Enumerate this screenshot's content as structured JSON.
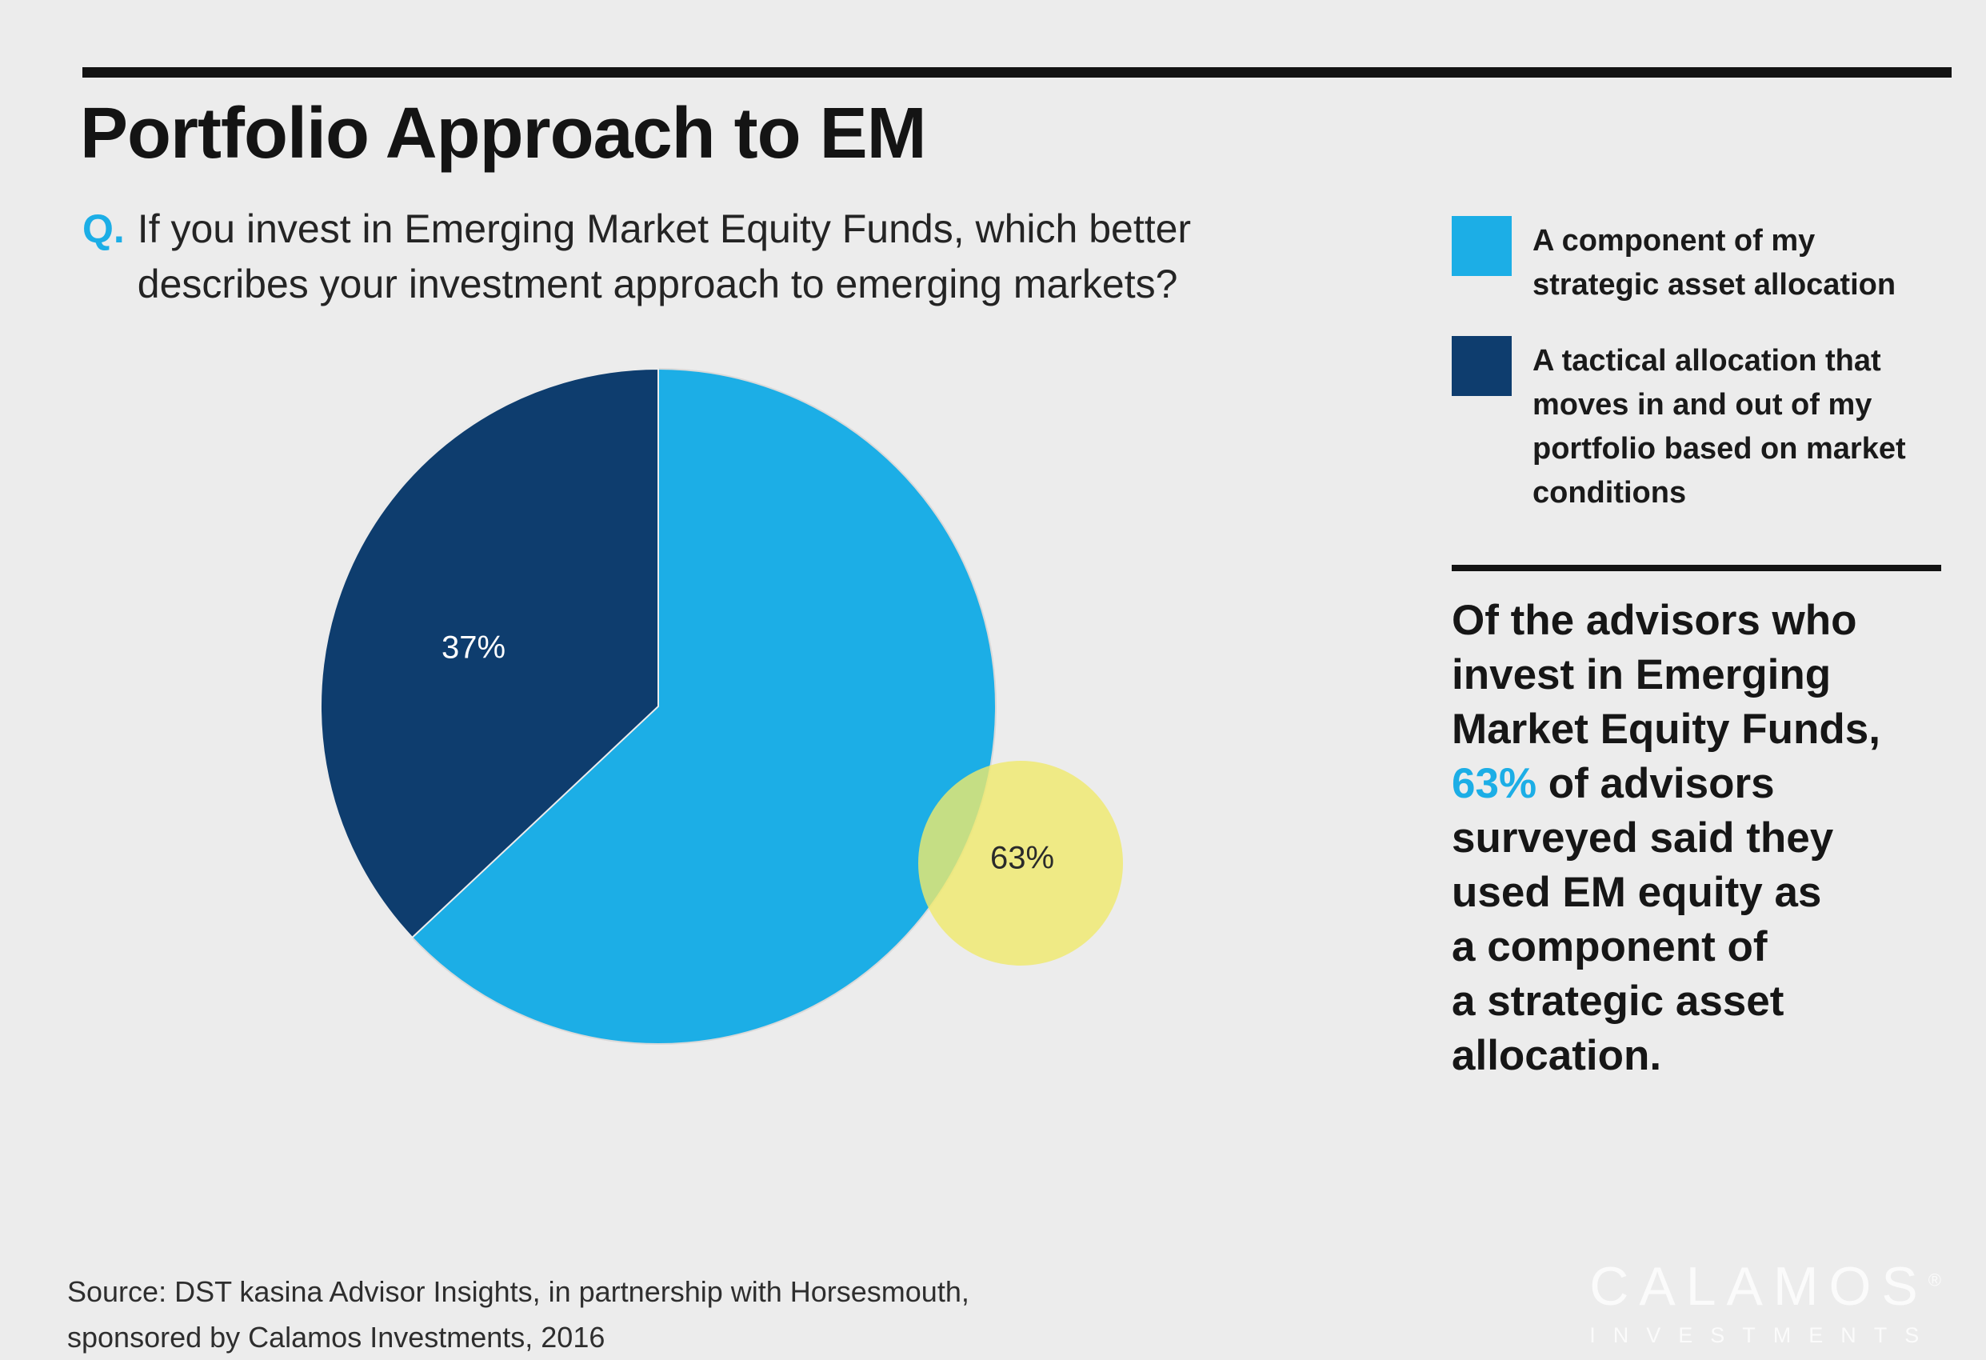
{
  "header": {
    "title": "Portfolio Approach to EM"
  },
  "question": {
    "prefix": "Q.",
    "lines": [
      "If you invest in Emerging Market Equity Funds, which better",
      "describes your investment approach to emerging markets?"
    ]
  },
  "chart_data": {
    "type": "pie",
    "title": "Portfolio Approach to EM",
    "categories": [
      "A component of my strategic asset allocation",
      "A tactical allocation that moves in and out of my portfolio based on market conditions"
    ],
    "values": [
      63,
      37
    ],
    "labels": [
      "63%",
      "37%"
    ],
    "colors": [
      "#1caee6",
      "#0e3d6e"
    ],
    "bubble": {
      "label": "63%",
      "color": "#f0ea6c"
    },
    "legend_position": "right"
  },
  "legend": {
    "items": [
      {
        "color": "#1caee6",
        "lines": [
          "A component of my",
          "strategic asset allocation"
        ]
      },
      {
        "color": "#0e3d6e",
        "lines": [
          "A tactical allocation that",
          "moves in and out of my",
          "portfolio based on market",
          "conditions"
        ]
      }
    ]
  },
  "callout": {
    "lines_before": [
      "Of the advisors who",
      "invest in Emerging",
      "Market Equity Funds,"
    ],
    "highlight": "63%",
    "highlight_color": "#1caee6",
    "highlight_suffix": " of advisors",
    "lines_after": [
      "surveyed said they",
      "used EM equity as",
      "a component of",
      "a strategic asset",
      "allocation."
    ]
  },
  "source": {
    "lines": [
      "Source: DST kasina Advisor Insights, in partnership with Horsesmouth,",
      "sponsored by Calamos Investments, 2016"
    ]
  },
  "logo": {
    "brand": "CALAMOS",
    "registered": "®",
    "sub": "INVESTMENTS"
  }
}
